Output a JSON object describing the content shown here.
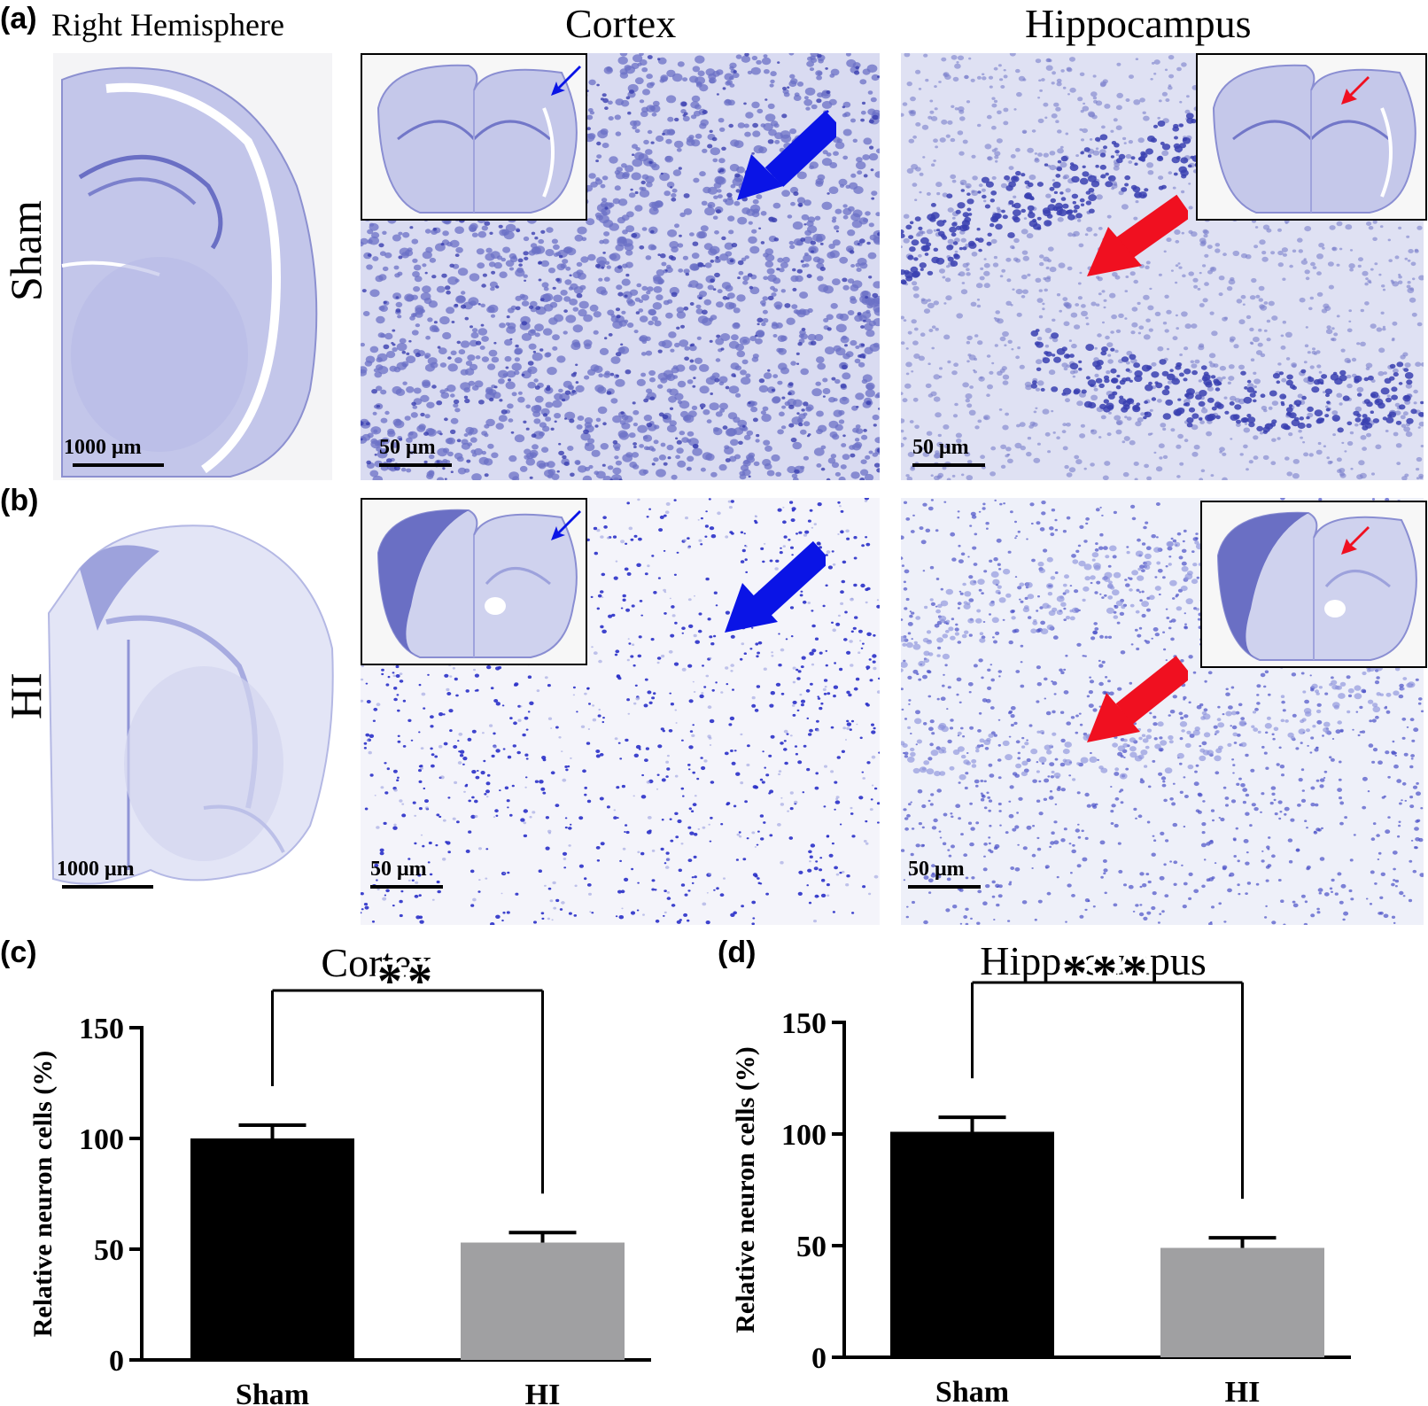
{
  "panels": {
    "a": "(a)",
    "b": "(b)",
    "c": "(c)",
    "d": "(d)"
  },
  "columns": {
    "left": "Right Hemisphere",
    "middle": "Cortex",
    "right": "Hippocampus"
  },
  "rows": {
    "top": "Sham",
    "bottom": "HI"
  },
  "scale_bars": {
    "hemisphere": "1000 μm",
    "micro": "50 μm"
  },
  "colors": {
    "stain_dark": "#3a3fb0",
    "stain_light": "#b8bde8",
    "arrow_cortex": "#0a14e6",
    "arrow_hippocampus": "#f01020",
    "bar_sham": "#000000",
    "bar_hi": "#a0a0a2"
  },
  "icons": {
    "cortex_arrow": "arrow-icon-blue",
    "hippocampus_arrow": "arrow-icon-red"
  },
  "chart_data": [
    {
      "type": "bar",
      "title": "Cortex",
      "categories": [
        "Sham",
        "HI"
      ],
      "values": [
        100,
        53
      ],
      "errors": [
        6,
        4.5
      ],
      "ylabel": "Relative neuron cells (%)",
      "ylim": [
        0,
        150
      ],
      "yticks": [
        "0",
        "50",
        "100",
        "150"
      ],
      "significance": "**",
      "grid": false
    },
    {
      "type": "bar",
      "title": "Hippocampus",
      "categories": [
        "Sham",
        "HI"
      ],
      "values": [
        101,
        49
      ],
      "errors": [
        6.5,
        4.5
      ],
      "ylabel": "Relative neuron cells (%)",
      "ylim": [
        0,
        150
      ],
      "yticks": [
        "0",
        "50",
        "100",
        "150"
      ],
      "significance": "***",
      "grid": false
    }
  ]
}
